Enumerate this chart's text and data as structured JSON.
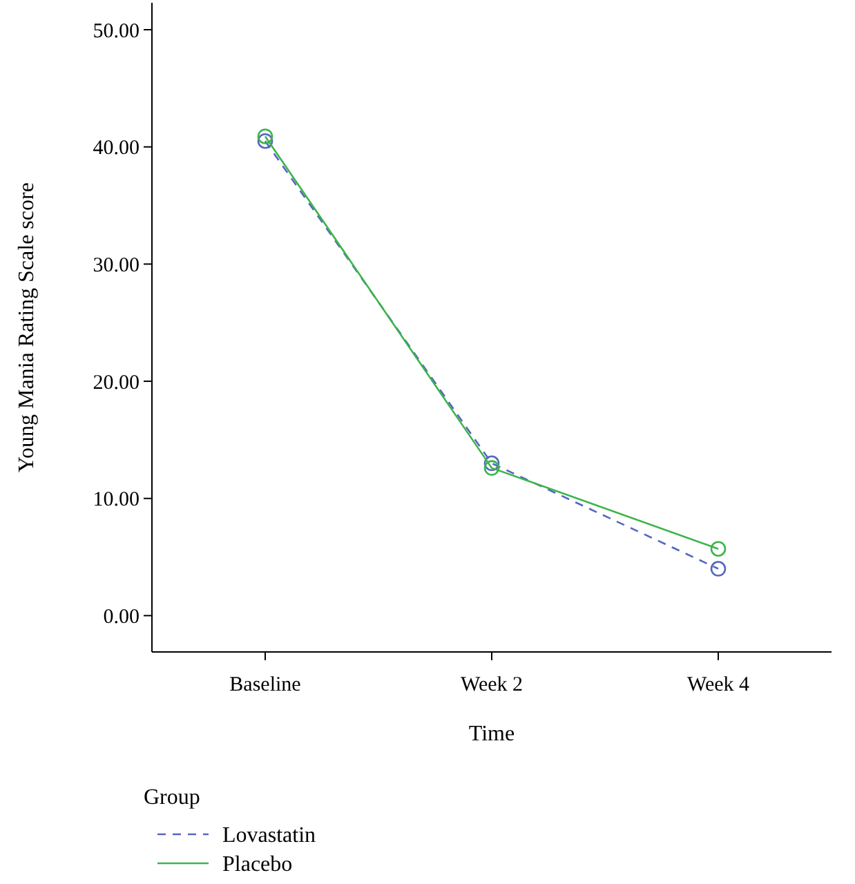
{
  "chart_data": {
    "type": "line",
    "xlabel": "Time",
    "ylabel": "Young Mania Rating Scale score",
    "legend_title": "Group",
    "categories": [
      "Baseline",
      "Week 2",
      "Week 4"
    ],
    "series": [
      {
        "name": "Lovastatin",
        "color": "#5566c0",
        "values": [
          40.5,
          13.0,
          4.0
        ],
        "line_style": "dashed"
      },
      {
        "name": "Placebo",
        "color": "#3cb44b",
        "values": [
          40.9,
          12.6,
          5.7
        ],
        "line_style": "solid"
      }
    ],
    "ylim": [
      -3.1,
      52.3
    ],
    "yticks": [
      {
        "value": 0,
        "label": "0.00"
      },
      {
        "value": 10,
        "label": "10.00"
      },
      {
        "value": 20,
        "label": "20.00"
      },
      {
        "value": 30,
        "label": "30.00"
      },
      {
        "value": 40,
        "label": "40.00"
      },
      {
        "value": 50,
        "label": "50.00"
      }
    ],
    "marker": "circle",
    "legend": "bottom left",
    "grid": false
  }
}
